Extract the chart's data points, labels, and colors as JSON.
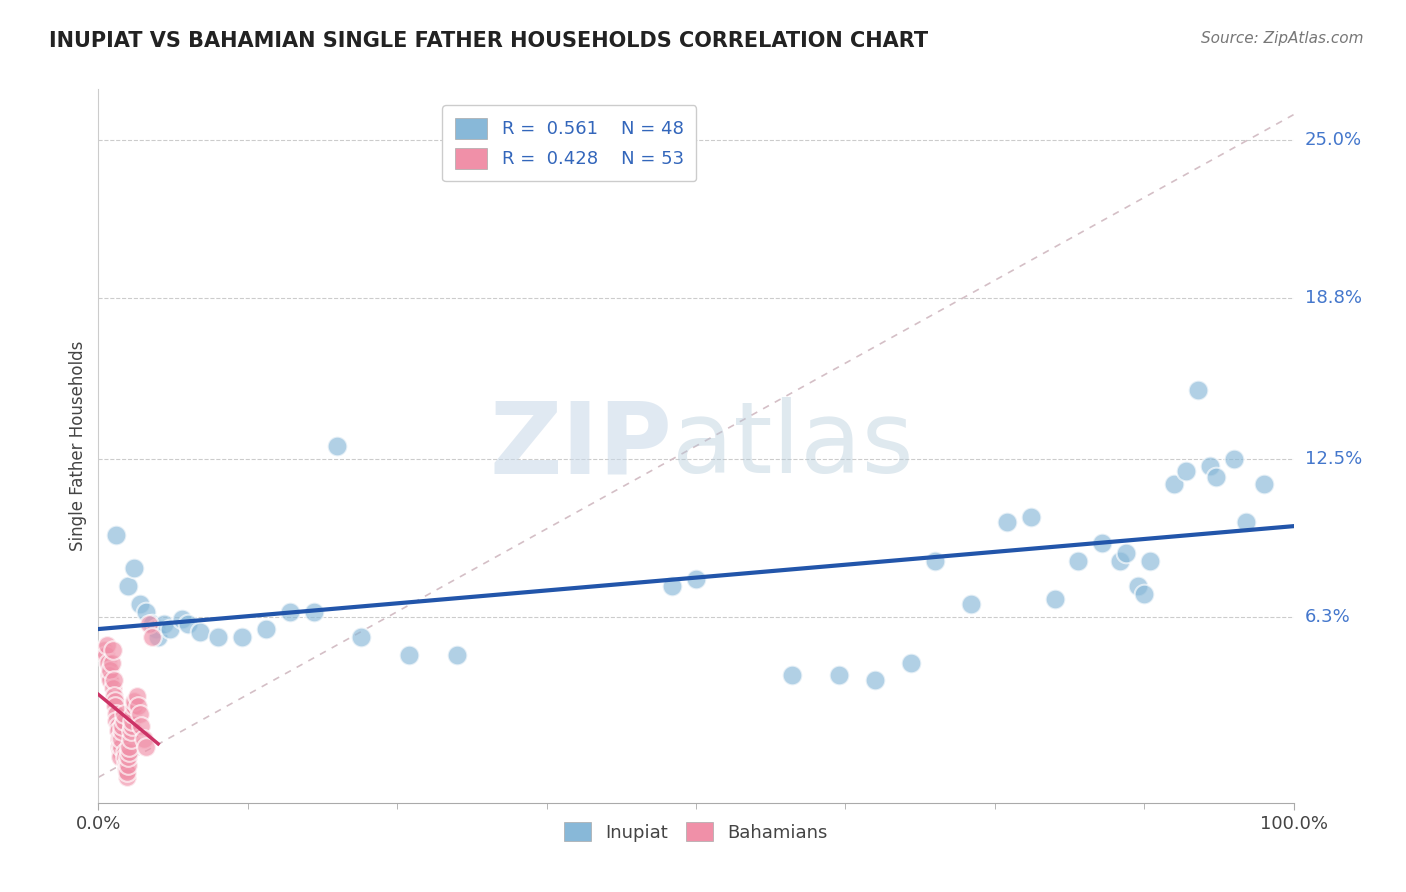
{
  "title": "INUPIAT VS BAHAMIAN SINGLE FATHER HOUSEHOLDS CORRELATION CHART",
  "source": "Source: ZipAtlas.com",
  "ylabel": "Single Father Households",
  "y_tick_labels": [
    "6.3%",
    "12.5%",
    "18.8%",
    "25.0%"
  ],
  "y_tick_values": [
    0.063,
    0.125,
    0.188,
    0.25
  ],
  "legend_r_entries": [
    {
      "r": "0.561",
      "n": "48",
      "color": "#a8c8e8"
    },
    {
      "r": "0.428",
      "n": "53",
      "color": "#f4a0b8"
    }
  ],
  "inupiat_color": "#88b8d8",
  "bahamian_color": "#f090a8",
  "inupiat_line_color": "#2255aa",
  "bahamian_line_color": "#cc3366",
  "diag_line_color": "#d0b8c0",
  "background_color": "#ffffff",
  "inupiat_scatter": [
    [
      0.015,
      0.095
    ],
    [
      0.025,
      0.075
    ],
    [
      0.03,
      0.082
    ],
    [
      0.035,
      0.068
    ],
    [
      0.04,
      0.065
    ],
    [
      0.045,
      0.06
    ],
    [
      0.048,
      0.058
    ],
    [
      0.05,
      0.055
    ],
    [
      0.055,
      0.06
    ],
    [
      0.06,
      0.058
    ],
    [
      0.07,
      0.062
    ],
    [
      0.075,
      0.06
    ],
    [
      0.085,
      0.057
    ],
    [
      0.1,
      0.055
    ],
    [
      0.12,
      0.055
    ],
    [
      0.14,
      0.058
    ],
    [
      0.16,
      0.065
    ],
    [
      0.18,
      0.065
    ],
    [
      0.2,
      0.13
    ],
    [
      0.22,
      0.055
    ],
    [
      0.26,
      0.048
    ],
    [
      0.3,
      0.048
    ],
    [
      0.48,
      0.075
    ],
    [
      0.5,
      0.078
    ],
    [
      0.58,
      0.04
    ],
    [
      0.62,
      0.04
    ],
    [
      0.65,
      0.038
    ],
    [
      0.68,
      0.045
    ],
    [
      0.7,
      0.085
    ],
    [
      0.73,
      0.068
    ],
    [
      0.76,
      0.1
    ],
    [
      0.78,
      0.102
    ],
    [
      0.8,
      0.07
    ],
    [
      0.82,
      0.085
    ],
    [
      0.84,
      0.092
    ],
    [
      0.855,
      0.085
    ],
    [
      0.86,
      0.088
    ],
    [
      0.87,
      0.075
    ],
    [
      0.875,
      0.072
    ],
    [
      0.88,
      0.085
    ],
    [
      0.9,
      0.115
    ],
    [
      0.91,
      0.12
    ],
    [
      0.92,
      0.152
    ],
    [
      0.93,
      0.122
    ],
    [
      0.935,
      0.118
    ],
    [
      0.95,
      0.125
    ],
    [
      0.96,
      0.1
    ],
    [
      0.975,
      0.115
    ]
  ],
  "bahamian_scatter": [
    [
      0.005,
      0.05
    ],
    [
      0.006,
      0.048
    ],
    [
      0.007,
      0.052
    ],
    [
      0.008,
      0.045
    ],
    [
      0.009,
      0.04
    ],
    [
      0.01,
      0.038
    ],
    [
      0.01,
      0.042
    ],
    [
      0.011,
      0.045
    ],
    [
      0.012,
      0.05
    ],
    [
      0.012,
      0.035
    ],
    [
      0.013,
      0.038
    ],
    [
      0.013,
      0.032
    ],
    [
      0.014,
      0.03
    ],
    [
      0.014,
      0.028
    ],
    [
      0.015,
      0.025
    ],
    [
      0.015,
      0.022
    ],
    [
      0.016,
      0.02
    ],
    [
      0.016,
      0.018
    ],
    [
      0.017,
      0.015
    ],
    [
      0.017,
      0.012
    ],
    [
      0.018,
      0.01
    ],
    [
      0.018,
      0.008
    ],
    [
      0.019,
      0.012
    ],
    [
      0.019,
      0.015
    ],
    [
      0.02,
      0.018
    ],
    [
      0.02,
      0.02
    ],
    [
      0.021,
      0.022
    ],
    [
      0.021,
      0.025
    ],
    [
      0.022,
      0.01
    ],
    [
      0.022,
      0.008
    ],
    [
      0.023,
      0.005
    ],
    [
      0.023,
      0.003
    ],
    [
      0.024,
      0.0
    ],
    [
      0.024,
      0.002
    ],
    [
      0.025,
      0.005
    ],
    [
      0.025,
      0.008
    ],
    [
      0.026,
      0.01
    ],
    [
      0.026,
      0.012
    ],
    [
      0.027,
      0.015
    ],
    [
      0.027,
      0.018
    ],
    [
      0.028,
      0.02
    ],
    [
      0.028,
      0.022
    ],
    [
      0.029,
      0.025
    ],
    [
      0.03,
      0.028
    ],
    [
      0.03,
      0.03
    ],
    [
      0.032,
      0.032
    ],
    [
      0.033,
      0.028
    ],
    [
      0.035,
      0.025
    ],
    [
      0.036,
      0.02
    ],
    [
      0.038,
      0.015
    ],
    [
      0.04,
      0.012
    ],
    [
      0.042,
      0.06
    ],
    [
      0.045,
      0.055
    ]
  ],
  "xlim": [
    0.0,
    1.0
  ],
  "ylim": [
    -0.01,
    0.27
  ]
}
